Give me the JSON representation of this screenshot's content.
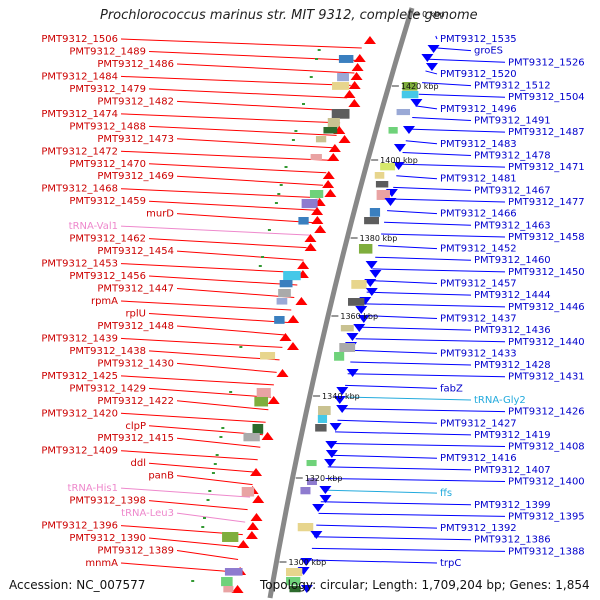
{
  "title": "Prochlorococcus marinus str. MIT 9312, complete genome",
  "footer": {
    "accession": "Accession: NC_007577",
    "summary": "Topology: circular; Length: 1,709,204 bp; Genes: 1,854"
  },
  "colors": {
    "forward": "#ff0000",
    "reverse": "#0000ff",
    "forward_label": "#cc0000",
    "reverse_label": "#0000cc",
    "trna": "#ee88cc",
    "rna": "#22aadd",
    "backbone": "#888888"
  },
  "ruler": [
    "0 kbp",
    "1420 kbp",
    "1400 kbp",
    "1380 kbp",
    "1360 kbp",
    "1340 kbp",
    "1320 kbp",
    "1300 kbp"
  ],
  "left_labels": [
    {
      "text": "PMT9312_1506",
      "kind": "gene"
    },
    {
      "text": "PMT9312_1489",
      "kind": "gene"
    },
    {
      "text": "PMT9312_1486",
      "kind": "gene"
    },
    {
      "text": "PMT9312_1484",
      "kind": "gene"
    },
    {
      "text": "PMT9312_1479",
      "kind": "gene"
    },
    {
      "text": "PMT9312_1482",
      "kind": "gene"
    },
    {
      "text": "PMT9312_1474",
      "kind": "gene"
    },
    {
      "text": "PMT9312_1488",
      "kind": "gene"
    },
    {
      "text": "PMT9312_1473",
      "kind": "gene"
    },
    {
      "text": "PMT9312_1472",
      "kind": "gene"
    },
    {
      "text": "PMT9312_1470",
      "kind": "gene"
    },
    {
      "text": "PMT9312_1469",
      "kind": "gene"
    },
    {
      "text": "PMT9312_1468",
      "kind": "gene"
    },
    {
      "text": "PMT9312_1459",
      "kind": "gene"
    },
    {
      "text": "murD",
      "kind": "gene"
    },
    {
      "text": "tRNA-Val1",
      "kind": "trna"
    },
    {
      "text": "PMT9312_1462",
      "kind": "gene"
    },
    {
      "text": "PMT9312_1454",
      "kind": "gene"
    },
    {
      "text": "PMT9312_1453",
      "kind": "gene"
    },
    {
      "text": "PMT9312_1456",
      "kind": "gene"
    },
    {
      "text": "PMT9312_1447",
      "kind": "gene"
    },
    {
      "text": "rpmA",
      "kind": "gene"
    },
    {
      "text": "rplU",
      "kind": "gene"
    },
    {
      "text": "PMT9312_1448",
      "kind": "gene"
    },
    {
      "text": "PMT9312_1439",
      "kind": "gene"
    },
    {
      "text": "PMT9312_1438",
      "kind": "gene"
    },
    {
      "text": "PMT9312_1430",
      "kind": "gene"
    },
    {
      "text": "PMT9312_1425",
      "kind": "gene"
    },
    {
      "text": "PMT9312_1429",
      "kind": "gene"
    },
    {
      "text": "PMT9312_1422",
      "kind": "gene"
    },
    {
      "text": "PMT9312_1420",
      "kind": "gene"
    },
    {
      "text": "clpP",
      "kind": "gene"
    },
    {
      "text": "PMT9312_1415",
      "kind": "gene"
    },
    {
      "text": "PMT9312_1409",
      "kind": "gene"
    },
    {
      "text": "ddl",
      "kind": "gene"
    },
    {
      "text": "panB",
      "kind": "gene"
    },
    {
      "text": "tRNA-His1",
      "kind": "trna"
    },
    {
      "text": "PMT9312_1398",
      "kind": "gene"
    },
    {
      "text": "tRNA-Leu3",
      "kind": "trna"
    },
    {
      "text": "PMT9312_1396",
      "kind": "gene"
    },
    {
      "text": "PMT9312_1390",
      "kind": "gene"
    },
    {
      "text": "PMT9312_1389",
      "kind": "gene"
    },
    {
      "text": "mnmA",
      "kind": "gene"
    }
  ],
  "right_labels": [
    {
      "text": "PMT9312_1535",
      "kind": "gene"
    },
    {
      "text": "groES",
      "kind": "gene"
    },
    {
      "text": "PMT9312_1526",
      "kind": "gene"
    },
    {
      "text": "PMT9312_1520",
      "kind": "gene"
    },
    {
      "text": "PMT9312_1512",
      "kind": "gene"
    },
    {
      "text": "PMT9312_1504",
      "kind": "gene"
    },
    {
      "text": "PMT9312_1496",
      "kind": "gene"
    },
    {
      "text": "PMT9312_1491",
      "kind": "gene"
    },
    {
      "text": "PMT9312_1487",
      "kind": "gene"
    },
    {
      "text": "PMT9312_1483",
      "kind": "gene"
    },
    {
      "text": "PMT9312_1478",
      "kind": "gene"
    },
    {
      "text": "PMT9312_1471",
      "kind": "gene"
    },
    {
      "text": "PMT9312_1481",
      "kind": "gene"
    },
    {
      "text": "PMT9312_1467",
      "kind": "gene"
    },
    {
      "text": "PMT9312_1477",
      "kind": "gene"
    },
    {
      "text": "PMT9312_1466",
      "kind": "gene"
    },
    {
      "text": "PMT9312_1463",
      "kind": "gene"
    },
    {
      "text": "PMT9312_1458",
      "kind": "gene"
    },
    {
      "text": "PMT9312_1452",
      "kind": "gene"
    },
    {
      "text": "PMT9312_1460",
      "kind": "gene"
    },
    {
      "text": "PMT9312_1450",
      "kind": "gene"
    },
    {
      "text": "PMT9312_1457",
      "kind": "gene"
    },
    {
      "text": "PMT9312_1444",
      "kind": "gene"
    },
    {
      "text": "PMT9312_1446",
      "kind": "gene"
    },
    {
      "text": "PMT9312_1437",
      "kind": "gene"
    },
    {
      "text": "PMT9312_1436",
      "kind": "gene"
    },
    {
      "text": "PMT9312_1440",
      "kind": "gene"
    },
    {
      "text": "PMT9312_1433",
      "kind": "gene"
    },
    {
      "text": "PMT9312_1428",
      "kind": "gene"
    },
    {
      "text": "PMT9312_1431",
      "kind": "gene"
    },
    {
      "text": "fabZ",
      "kind": "gene"
    },
    {
      "text": "tRNA-Gly2",
      "kind": "rna"
    },
    {
      "text": "PMT9312_1426",
      "kind": "gene"
    },
    {
      "text": "PMT9312_1427",
      "kind": "gene"
    },
    {
      "text": "PMT9312_1419",
      "kind": "gene"
    },
    {
      "text": "PMT9312_1408",
      "kind": "gene"
    },
    {
      "text": "PMT9312_1416",
      "kind": "gene"
    },
    {
      "text": "PMT9312_1407",
      "kind": "gene"
    },
    {
      "text": "PMT9312_1400",
      "kind": "gene"
    },
    {
      "text": "ffs",
      "kind": "rna"
    },
    {
      "text": "PMT9312_1399",
      "kind": "gene"
    },
    {
      "text": "PMT9312_1395",
      "kind": "gene"
    },
    {
      "text": "PMT9312_1392",
      "kind": "gene"
    },
    {
      "text": "PMT9312_1386",
      "kind": "gene"
    },
    {
      "text": "PMT9312_1388",
      "kind": "gene"
    },
    {
      "text": "trpC",
      "kind": "gene"
    }
  ]
}
